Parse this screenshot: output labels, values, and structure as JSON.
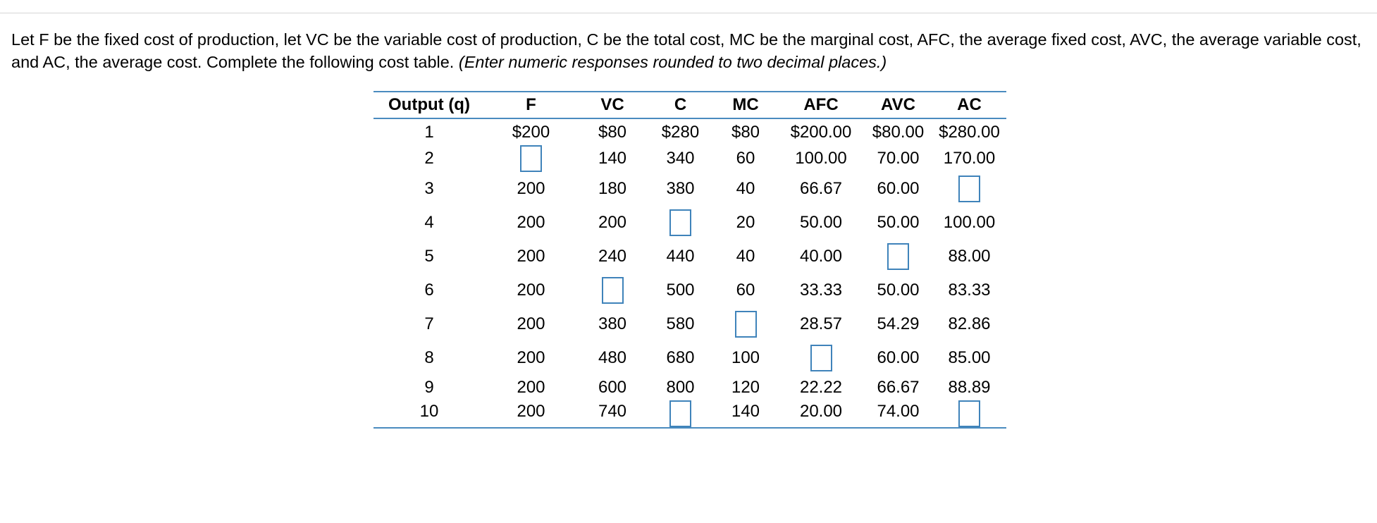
{
  "question": {
    "text": "Let F be the fixed cost of production, let VC be the variable cost of production, C be the total cost, MC be the marginal cost, AFC, the average fixed cost, AVC, the average variable cost, and AC, the average cost.  Complete the following cost table.",
    "instruction": "(Enter numeric responses rounded to two decimal places.)"
  },
  "table": {
    "headers": [
      "Output (q)",
      "F",
      "VC",
      "C",
      "MC",
      "AFC",
      "AVC",
      "AC"
    ],
    "rows": [
      [
        "1",
        "$200",
        "$80",
        "$280",
        "$80",
        "$200.00",
        "$80.00",
        "$280.00"
      ],
      [
        "2",
        null,
        "140",
        "340",
        "60",
        "100.00",
        "70.00",
        "170.00"
      ],
      [
        "3",
        "200",
        "180",
        "380",
        "40",
        "66.67",
        "60.00",
        null
      ],
      [
        "4",
        "200",
        "200",
        null,
        "20",
        "50.00",
        "50.00",
        "100.00"
      ],
      [
        "5",
        "200",
        "240",
        "440",
        "40",
        "40.00",
        null,
        "88.00"
      ],
      [
        "6",
        "200",
        null,
        "500",
        "60",
        "33.33",
        "50.00",
        "83.33"
      ],
      [
        "7",
        "200",
        "380",
        "580",
        null,
        "28.57",
        "54.29",
        "82.86"
      ],
      [
        "8",
        "200",
        "480",
        "680",
        "100",
        null,
        "60.00",
        "85.00"
      ],
      [
        "9",
        "200",
        "600",
        "800",
        "120",
        "22.22",
        "66.67",
        "88.89"
      ],
      [
        "10",
        "200",
        "740",
        null,
        "140",
        "20.00",
        "74.00",
        null
      ]
    ]
  },
  "colors": {
    "table_rule": "#4a8bbf",
    "answer_box_border": "#3f83ba",
    "top_rule": "#d6d6d6"
  }
}
